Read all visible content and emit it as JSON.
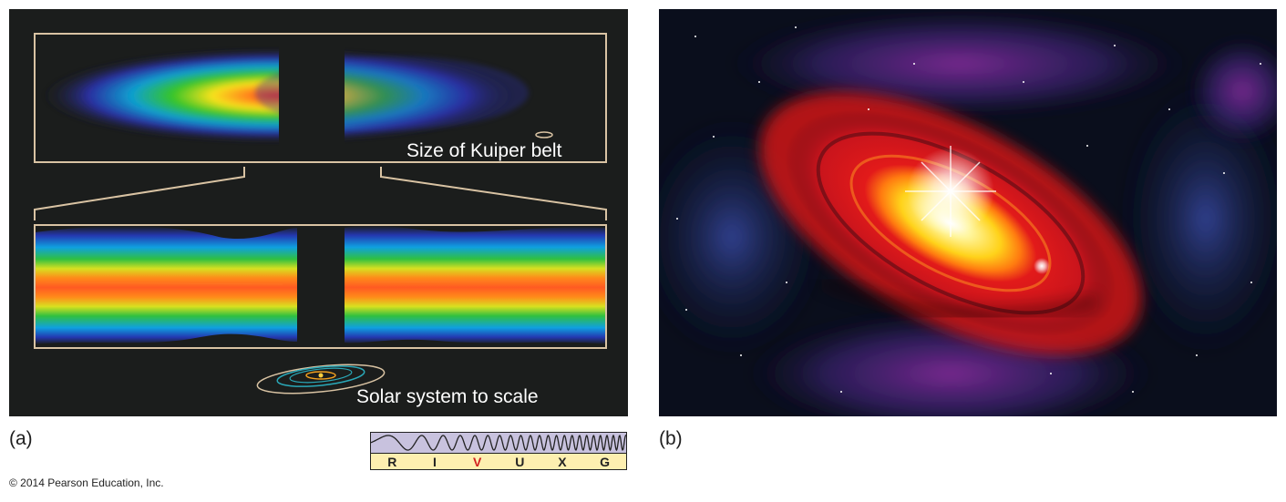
{
  "panel_a": {
    "letter": "(a)",
    "kuiper_label": "Size of Kuiper belt",
    "solar_label": "Solar system to scale"
  },
  "panel_b": {
    "letter": "(b)"
  },
  "spectrum": {
    "bands": [
      "R",
      "I",
      "V",
      "U",
      "X",
      "G"
    ],
    "active_band": "V",
    "active_color": "#d11f1f"
  },
  "copyright": "© 2014 Pearson Education, Inc.",
  "colors": {
    "panel_a_bg": "#1b1d1c",
    "frame": "#d9c3a3",
    "disk_gradient": [
      "#ff3a1a",
      "#ff8a1a",
      "#f7e21a",
      "#35c42a",
      "#0f8fd0",
      "#2a2fa0"
    ],
    "panel_b_bg": "#0a0e1c"
  }
}
